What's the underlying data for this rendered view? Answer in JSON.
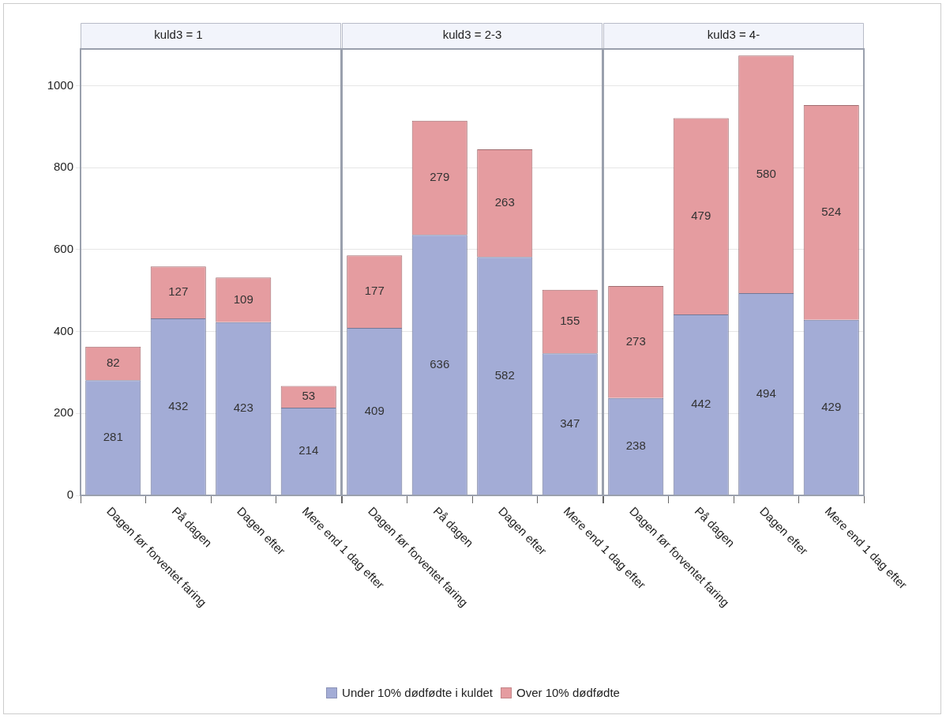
{
  "chart_data": [
    {
      "type": "bar",
      "title": "kuld3 = 1",
      "categories": [
        "Dagen før forventet faring",
        "På dagen",
        "Dagen efter",
        "Mere end 1 dag efter"
      ],
      "stacked": true,
      "data_labels": true,
      "grid": "y",
      "legend": "bottom",
      "ylim": [
        0,
        1090
      ],
      "yticks": [
        0,
        200,
        400,
        600,
        800,
        1000
      ],
      "series": [
        {
          "name": "Under 10% dødfødte i kuldet",
          "color": "#a3acd6",
          "values": [
            281,
            432,
            423,
            214
          ]
        },
        {
          "name": "Over 10% dødfødte",
          "color": "#e59ca0",
          "values": [
            82,
            127,
            109,
            53
          ]
        }
      ]
    },
    {
      "type": "bar",
      "title": "kuld3 = 2-3",
      "categories": [
        "Dagen før forventet faring",
        "På dagen",
        "Dagen efter",
        "Mere end 1 dag efter"
      ],
      "stacked": true,
      "data_labels": true,
      "grid": "y",
      "tick_labels": "x",
      "ylim": [
        0,
        1090
      ],
      "yticks": [
        0,
        200,
        400,
        600,
        800,
        1000
      ],
      "series": [
        {
          "color": "#a3acd6",
          "values": [
            409,
            636,
            582,
            347
          ]
        },
        {
          "color": "#e59ca0",
          "values": [
            177,
            279,
            263,
            155
          ]
        }
      ]
    },
    {
      "type": "bar",
      "title": "kuld3 = 4-",
      "categories": [
        "Dagen før forventet faring",
        "På dagen",
        "Dagen efter",
        "Mere end 1 dag efter"
      ],
      "stacked": true,
      "data_labels": true,
      "grid": "y",
      "tick_labels": "x",
      "ylim": [
        0,
        1090
      ],
      "yticks": [
        0,
        200,
        400,
        600,
        800,
        1000
      ],
      "series": [
        {
          "color": "#a3acd6",
          "values": [
            238,
            442,
            494,
            429
          ]
        },
        {
          "color": "#e59ca0",
          "values": [
            273,
            479,
            580,
            524
          ]
        }
      ]
    }
  ]
}
